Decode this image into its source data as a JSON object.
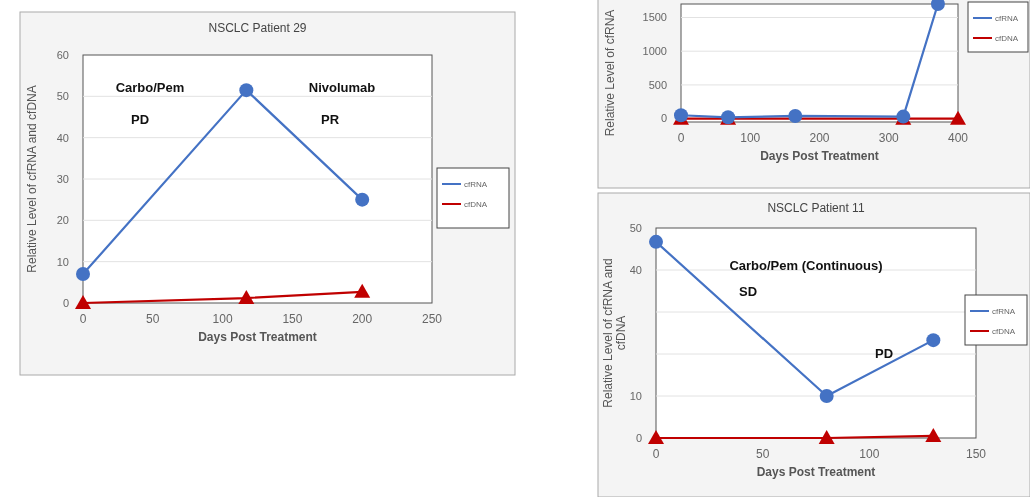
{
  "chart_data": [
    {
      "type": "line",
      "title": "NSCLC Patient 29",
      "xlabel": "Days Post Treatment",
      "ylabel": "Relative Level of cfRNA and cfDNA",
      "xlim": [
        0,
        250
      ],
      "xticks": [
        0,
        50,
        100,
        150,
        200,
        250
      ],
      "ylim": [
        0,
        60
      ],
      "yticks": [
        0,
        10,
        20,
        30,
        40,
        50,
        60
      ],
      "grid": "y",
      "legend": "right",
      "annotations": [
        "Carbo/Pem",
        "PD",
        "Nivolumab",
        "PR"
      ],
      "series": [
        {
          "name": "cfRNA",
          "color": "#4472c4",
          "marker": "circle",
          "x": [
            0,
            117,
            200
          ],
          "values": [
            7,
            51.5,
            25
          ]
        },
        {
          "name": "cfDNA",
          "color": "#c00000",
          "marker": "triangle",
          "x": [
            0,
            117,
            200
          ],
          "values": [
            0,
            1.2,
            2.7
          ]
        }
      ]
    },
    {
      "type": "line",
      "xlabel": "Days Post Treatment",
      "ylabel": "Relative Level of cfRNA",
      "xlim": [
        0,
        400
      ],
      "xticks": [
        0,
        100,
        200,
        300,
        400
      ],
      "ylim": [
        -50,
        1700
      ],
      "yticks": [
        0,
        500,
        1000,
        1500
      ],
      "grid": "y",
      "legend": "right",
      "series": [
        {
          "name": "cfRNA",
          "color": "#4472c4",
          "marker": "circle",
          "x": [
            0,
            68,
            165,
            321,
            371
          ],
          "values": [
            50,
            20,
            40,
            30,
            1700
          ]
        },
        {
          "name": "cfDNA",
          "color": "#c00000",
          "marker": "triangle",
          "x": [
            0,
            68,
            321,
            400
          ],
          "values": [
            0,
            0,
            0,
            0
          ]
        }
      ]
    },
    {
      "type": "line",
      "title": "NSCLC Patient 11",
      "xlabel": "Days Post Treatment",
      "ylabel": "Relative Level of cfRNA and cfDNA",
      "xlim": [
        0,
        150
      ],
      "xticks": [
        0,
        50,
        100,
        150
      ],
      "ylim": [
        0,
        50
      ],
      "yticks": [
        0,
        10,
        {
          "value": 20,
          "label": null
        },
        {
          "value": 30,
          "label": null
        },
        40,
        50
      ],
      "grid": "y",
      "legend": "right",
      "annotations": [
        "Carbo/Pem (Continuous)",
        "SD",
        "PD"
      ],
      "series": [
        {
          "name": "cfRNA",
          "color": "#4472c4",
          "marker": "circle",
          "x": [
            0,
            80,
            130
          ],
          "values": [
            46.7,
            10,
            23.3
          ]
        },
        {
          "name": "cfDNA",
          "color": "#c00000",
          "marker": "triangle",
          "x": [
            0,
            80,
            130
          ],
          "values": [
            0,
            0,
            0.5
          ]
        }
      ]
    }
  ]
}
